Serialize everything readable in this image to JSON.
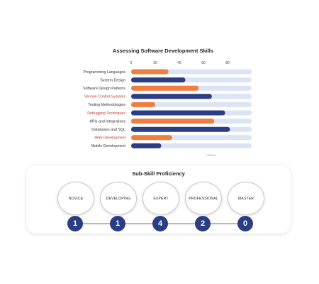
{
  "chart_data": {
    "type": "bar",
    "orientation": "horizontal",
    "title": "Assessing Software Development Skills",
    "xlabel": "Values",
    "ylabel": "",
    "xlim": [
      0,
      100
    ],
    "ticks": [
      0,
      20,
      40,
      60,
      80
    ],
    "grid": false,
    "track": true,
    "categories": [
      "Programming Languages",
      "System Design",
      "Software Design Patterns",
      "Version Control Systems",
      "Testing Methodologies",
      "Debugging Techniques",
      "APIs and Integrations",
      "Databases and SQL",
      "Web Development",
      "Mobile Development"
    ],
    "values": [
      31,
      45,
      56,
      67,
      20,
      78,
      69,
      82,
      34,
      25
    ],
    "colors": [
      "orange",
      "blue",
      "orange",
      "blue",
      "orange",
      "blue",
      "orange",
      "blue",
      "orange",
      "blue"
    ],
    "highlighted_labels": [
      3,
      5,
      8
    ],
    "palette": {
      "orange": "#f07e3e",
      "blue": "#2b3d84",
      "track": "#dbe4f4",
      "highlight_label": "#c0392b"
    }
  },
  "proficiency": {
    "title": "Sub-Skill Proficiency",
    "levels": [
      {
        "label": "NOVICE",
        "count": "1"
      },
      {
        "label": "DEVELOPING",
        "count": "1"
      },
      {
        "label": "EXPERT",
        "count": "4"
      },
      {
        "label": "PROFESSIONAL",
        "count": "2"
      },
      {
        "label": "MASTER",
        "count": "0"
      }
    ]
  }
}
